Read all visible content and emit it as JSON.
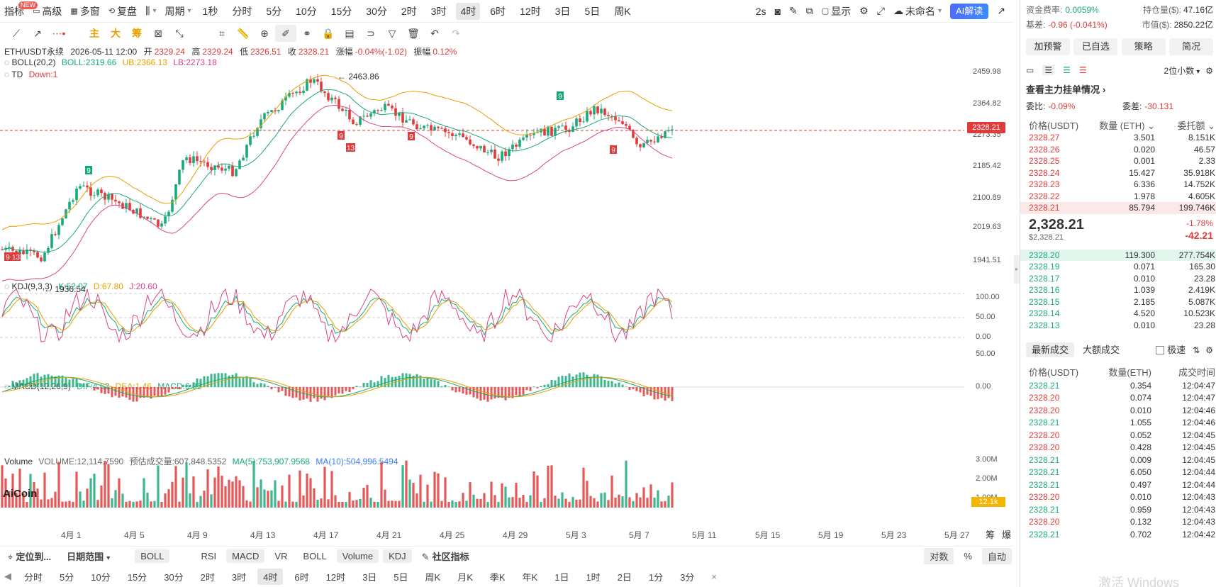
{
  "top_toolbar": {
    "items": [
      {
        "label": "指标",
        "active": false
      },
      {
        "label": "高级",
        "active": false
      },
      {
        "label": "多窗",
        "active": false
      },
      {
        "label": "复盘",
        "active": false
      }
    ],
    "new_badge": "NEW",
    "period_label": "周期",
    "timeframes": [
      "1秒",
      "分时",
      "5分",
      "10分",
      "15分",
      "30分",
      "2时",
      "3时",
      "4时",
      "6时",
      "12时",
      "3日",
      "5日",
      "周K"
    ],
    "active_timeframe": "4时",
    "refresh": "2s",
    "display_label": "显示",
    "unnamed_label": "未命名",
    "ai_label": "AI解读"
  },
  "draw_toolbar": {
    "zhu": "主",
    "da": "大",
    "chou": "筹"
  },
  "chart": {
    "symbol_line": {
      "symbol": "ETH/USDT永续",
      "datetime": "2026-05-11 12:00",
      "open_label": "开",
      "open": "2329.24",
      "high_label": "高",
      "high": "2329.24",
      "low_label": "低",
      "low": "2326.51",
      "close_label": "收",
      "close": "2328.21",
      "change_label": "涨幅",
      "change": "-0.04%(-1.02)",
      "amp_label": "振幅",
      "amp": "0.12%"
    },
    "boll": {
      "name": "BOLL(20,2)",
      "boll": "BOLL:2319.66",
      "ub": "UB:2366.13",
      "lb": "LB:2273.18"
    },
    "td": {
      "name": "TD",
      "down": "Down:1"
    },
    "kdj": {
      "name": "KDJ(9,3,3)",
      "k": "K:52.07",
      "d": "D:67.80",
      "j": "J:20.60"
    },
    "macd": {
      "name": "MACD(12,26,9)",
      "dif": "DIF:4.62",
      "dea": "DEA:1.46",
      "macd": "MACD:6.32"
    },
    "volume": {
      "name": "Volume",
      "vol": "VOLUME:12,114.7590",
      "est": "预估成交量:607,848.5352",
      "ma5": "MA(5):753,907.9568",
      "ma10": "MA(10):504,996.5494"
    },
    "price_axis": [
      "2459.98",
      "2364.82",
      "2273.35",
      "2185.42",
      "2100.89",
      "2019.63",
      "1941.51"
    ],
    "current_price": "2328.21",
    "kdj_axis": [
      "100.00",
      "50.00",
      "0.00"
    ],
    "macd_axis": [
      "50.00",
      "0.00"
    ],
    "vol_axis": [
      "3.00M",
      "2.00M",
      "1.00M"
    ],
    "vol_current": "12.1k",
    "high_marker": "← 2463.86",
    "low_marker": "← 1936.54",
    "td_marks": [
      {
        "label": "9",
        "color": "green"
      },
      {
        "label": "9",
        "color": "red"
      },
      {
        "label": "13",
        "color": "red"
      },
      {
        "label": "9",
        "color": "red"
      },
      {
        "label": "9",
        "color": "green"
      },
      {
        "label": "9",
        "color": "red"
      },
      {
        "label": "9",
        "color": "red"
      },
      {
        "label": "13",
        "color": "red"
      }
    ],
    "date_axis": [
      "4月 1",
      "4月 5",
      "4月 9",
      "4月 13",
      "4月 17",
      "4月 21",
      "4月 25",
      "4月 29",
      "5月 3",
      "5月 7",
      "5月 11",
      "5月 15",
      "5月 19",
      "5月 23",
      "5月 27"
    ],
    "corner_labels": [
      "筹",
      "爆"
    ],
    "logo": "AiCoin"
  },
  "indicator_bar": {
    "locate": "定位到...",
    "date_range": "日期范围",
    "boll_btn": "BOLL",
    "items": [
      {
        "label": "RSI",
        "on": false
      },
      {
        "label": "MACD",
        "on": true
      },
      {
        "label": "VR",
        "on": false
      },
      {
        "label": "BOLL",
        "on": false
      },
      {
        "label": "Volume",
        "on": true
      },
      {
        "label": "KDJ",
        "on": true
      }
    ],
    "community": "社区指标",
    "log": "对数",
    "pct": "%",
    "auto": "自动"
  },
  "timeframe_bar": {
    "items": [
      "分时",
      "5分",
      "10分",
      "15分",
      "30分",
      "2时",
      "3时",
      "4时",
      "6时",
      "12时",
      "3日",
      "5日",
      "周K",
      "月K",
      "季K",
      "年K",
      "1日",
      "1时",
      "2日",
      "1分",
      "3分"
    ],
    "active": "4时",
    "close": "×"
  },
  "panel": {
    "funding_label": "资金费率:",
    "funding": "0.0059%",
    "oi_label": "持仓量($):",
    "oi": "47.16亿",
    "basis_label": "基差:",
    "basis": "-0.96 (-0.041%)",
    "mcap_label": "市值($):",
    "mcap": "2850.22亿",
    "buttons": [
      "加预警",
      "已自选",
      "策略",
      "简况"
    ],
    "precision": "2位小数",
    "depth_title": "查看主力挂单情况",
    "wb_label": "委比:",
    "wb": "-0.09%",
    "wc_label": "委差:",
    "wc": "-30.131",
    "ob_headers": [
      "价格(USDT)",
      "数量 (ETH)",
      "委托额"
    ],
    "asks": [
      {
        "p": "2328.27",
        "q": "3.501",
        "t": "8.151K"
      },
      {
        "p": "2328.26",
        "q": "0.020",
        "t": "46.57"
      },
      {
        "p": "2328.25",
        "q": "0.001",
        "t": "2.33"
      },
      {
        "p": "2328.24",
        "q": "15.427",
        "t": "35.918K"
      },
      {
        "p": "2328.23",
        "q": "6.336",
        "t": "14.752K"
      },
      {
        "p": "2328.22",
        "q": "1.978",
        "t": "4.605K"
      },
      {
        "p": "2328.21",
        "q": "85.794",
        "t": "199.746K"
      }
    ],
    "last_price": "2,328.21",
    "last_usd": "$2,328.21",
    "chg_pct": "-1.78%",
    "chg_abs": "-42.21",
    "bids": [
      {
        "p": "2328.20",
        "q": "119.300",
        "t": "277.754K"
      },
      {
        "p": "2328.19",
        "q": "0.071",
        "t": "165.30"
      },
      {
        "p": "2328.17",
        "q": "0.010",
        "t": "23.28"
      },
      {
        "p": "2328.16",
        "q": "1.039",
        "t": "2.419K"
      },
      {
        "p": "2328.15",
        "q": "2.185",
        "t": "5.087K"
      },
      {
        "p": "2328.14",
        "q": "4.520",
        "t": "10.523K"
      },
      {
        "p": "2328.13",
        "q": "0.010",
        "t": "23.28"
      }
    ],
    "trade_tabs": [
      "最新成交",
      "大额成交"
    ],
    "fast_label": "极速",
    "trade_headers": [
      "价格(USDT)",
      "数量(ETH)",
      "成交时间"
    ],
    "trades": [
      {
        "p": "2328.21",
        "q": "0.354",
        "t": "12:04:47",
        "side": "buy"
      },
      {
        "p": "2328.20",
        "q": "0.074",
        "t": "12:04:47",
        "side": "sell"
      },
      {
        "p": "2328.20",
        "q": "0.010",
        "t": "12:04:46",
        "side": "sell"
      },
      {
        "p": "2328.21",
        "q": "1.055",
        "t": "12:04:46",
        "side": "buy"
      },
      {
        "p": "2328.20",
        "q": "0.052",
        "t": "12:04:45",
        "side": "sell"
      },
      {
        "p": "2328.20",
        "q": "0.428",
        "t": "12:04:45",
        "side": "sell"
      },
      {
        "p": "2328.21",
        "q": "0.009",
        "t": "12:04:45",
        "side": "buy"
      },
      {
        "p": "2328.21",
        "q": "6.050",
        "t": "12:04:44",
        "side": "buy"
      },
      {
        "p": "2328.21",
        "q": "0.497",
        "t": "12:04:44",
        "side": "buy"
      },
      {
        "p": "2328.20",
        "q": "0.010",
        "t": "12:04:43",
        "side": "sell"
      },
      {
        "p": "2328.21",
        "q": "0.959",
        "t": "12:04:43",
        "side": "buy"
      },
      {
        "p": "2328.20",
        "q": "0.132",
        "t": "12:04:43",
        "side": "sell"
      },
      {
        "p": "2328.21",
        "q": "0.702",
        "t": "12:04:42",
        "side": "buy"
      }
    ],
    "watermark": "激活 Windows"
  },
  "colors": {
    "up": "#1aaa7a",
    "down": "#e03b3b",
    "boll_mid": "#1aaa7a",
    "boll_up": "#e8a000",
    "boll_low": "#d9448a"
  }
}
